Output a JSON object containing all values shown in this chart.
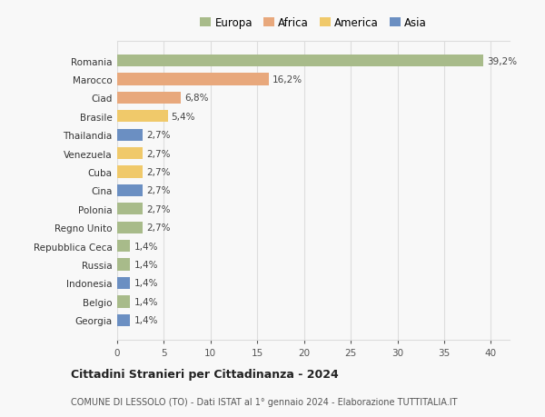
{
  "categories": [
    "Georgia",
    "Belgio",
    "Indonesia",
    "Russia",
    "Repubblica Ceca",
    "Regno Unito",
    "Polonia",
    "Cina",
    "Cuba",
    "Venezuela",
    "Thailandia",
    "Brasile",
    "Ciad",
    "Marocco",
    "Romania"
  ],
  "values": [
    1.4,
    1.4,
    1.4,
    1.4,
    1.4,
    2.7,
    2.7,
    2.7,
    2.7,
    2.7,
    2.7,
    5.4,
    6.8,
    16.2,
    39.2
  ],
  "colors": [
    "#6b8fc2",
    "#a8bb8a",
    "#6b8fc2",
    "#a8bb8a",
    "#a8bb8a",
    "#a8bb8a",
    "#a8bb8a",
    "#6b8fc2",
    "#f0c96a",
    "#f0c96a",
    "#6b8fc2",
    "#f0c96a",
    "#e8a87c",
    "#e8a87c",
    "#a8bb8a"
  ],
  "labels": [
    "1,4%",
    "1,4%",
    "1,4%",
    "1,4%",
    "1,4%",
    "2,7%",
    "2,7%",
    "2,7%",
    "2,7%",
    "2,7%",
    "2,7%",
    "5,4%",
    "6,8%",
    "16,2%",
    "39,2%"
  ],
  "legend": {
    "Europa": "#a8bb8a",
    "Africa": "#e8a87c",
    "America": "#f0c96a",
    "Asia": "#6b8fc2"
  },
  "xlim": [
    0,
    42
  ],
  "xticks": [
    0,
    5,
    10,
    15,
    20,
    25,
    30,
    35,
    40
  ],
  "title": "Cittadini Stranieri per Cittadinanza - 2024",
  "subtitle": "COMUNE DI LESSOLO (TO) - Dati ISTAT al 1° gennaio 2024 - Elaborazione TUTTITALIA.IT",
  "bg_color": "#f8f8f8",
  "grid_color": "#dddddd",
  "bar_height": 0.65
}
